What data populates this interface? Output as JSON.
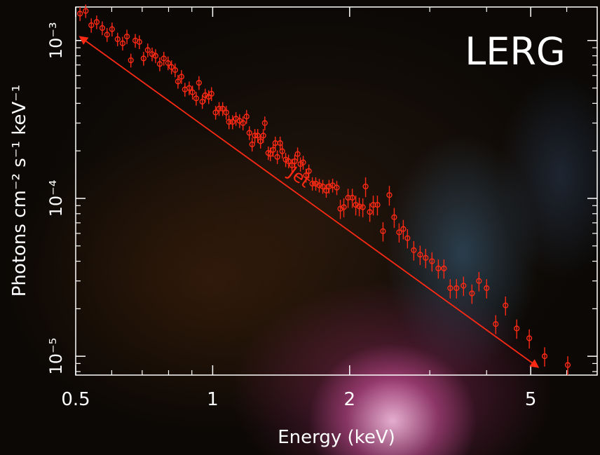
{
  "chart_data": {
    "type": "scatter",
    "x_label": "Energy  (keV)",
    "y_label": "Photons cm⁻² s⁻¹ keV⁻¹",
    "xscale": "log",
    "yscale": "log",
    "xlim": [
      0.5,
      7
    ],
    "ylim": [
      7.6e-06,
      0.00163
    ],
    "xticks": [
      0.5,
      1,
      2,
      5
    ],
    "xticks_minor": [
      0.6,
      0.7,
      0.8,
      0.9,
      3,
      4,
      6
    ],
    "yticks": [
      {
        "value": 1e-05,
        "label": "10⁻⁵"
      },
      {
        "value": 0.0001,
        "label": "10⁻⁴"
      },
      {
        "value": 0.001,
        "label": "10⁻³"
      }
    ],
    "yticks_minor": [
      8e-06,
      9e-06,
      2e-05,
      3e-05,
      4e-05,
      5e-05,
      6e-05,
      7e-05,
      8e-05,
      9e-05,
      0.0002,
      0.0003,
      0.0004,
      0.0005,
      0.0006,
      0.0007,
      0.0008,
      0.0009
    ],
    "axis_color": "#ffffff",
    "series": [
      {
        "color": "#ff2a14",
        "x": [
          0.511,
          0.526,
          0.541,
          0.556,
          0.572,
          0.586,
          0.601,
          0.618,
          0.634,
          0.648,
          0.661,
          0.676,
          0.69,
          0.705,
          0.72,
          0.736,
          0.749,
          0.765,
          0.781,
          0.798,
          0.812,
          0.827,
          0.839,
          0.854,
          0.869,
          0.888,
          0.903,
          0.92,
          0.933,
          0.949,
          0.963,
          0.98,
          0.994,
          1.015,
          1.033,
          1.052,
          1.071,
          1.086,
          1.106,
          1.125,
          1.146,
          1.166,
          1.187,
          1.204,
          1.221,
          1.238,
          1.256,
          1.274,
          1.292,
          1.302,
          1.325,
          1.339,
          1.358,
          1.373,
          1.387,
          1.407,
          1.422,
          1.447,
          1.468,
          1.494,
          1.515,
          1.537,
          1.559,
          1.581,
          1.604,
          1.627,
          1.656,
          1.685,
          1.715,
          1.746,
          1.777,
          1.802,
          1.835,
          1.874,
          1.908,
          1.942,
          1.984,
          2.027,
          2.063,
          2.1,
          2.138,
          2.168,
          2.215,
          2.254,
          2.302,
          2.368,
          2.445,
          2.506,
          2.569,
          2.624,
          2.68,
          2.767,
          2.857,
          2.939,
          3.034,
          3.133,
          3.223,
          3.327,
          3.435,
          3.559,
          3.714,
          3.848,
          4.0,
          4.189,
          4.402,
          4.658,
          4.964,
          5.365,
          6.031
        ],
        "values": [
          0.00148,
          0.00154,
          0.00125,
          0.00131,
          0.0012,
          0.00109,
          0.00118,
          0.00102,
          0.00096,
          0.00106,
          0.00075,
          0.001,
          0.00098,
          0.00077,
          0.00087,
          0.00082,
          0.0008,
          0.00071,
          0.00077,
          0.00072,
          0.00068,
          0.00065,
          0.00055,
          0.00059,
          0.00049,
          0.0005,
          0.00047,
          0.00043,
          0.00054,
          0.00041,
          0.00045,
          0.00044,
          0.00046,
          0.00035,
          0.00037,
          0.00037,
          0.00035,
          0.000305,
          0.000305,
          0.00032,
          0.00031,
          0.0003,
          0.00033,
          0.00026,
          0.00022,
          0.00025,
          0.00025,
          0.00023,
          0.00025,
          0.0003,
          0.000194,
          0.000191,
          0.000203,
          0.000224,
          0.000183,
          0.000224,
          0.000199,
          0.000176,
          0.000172,
          0.000162,
          0.000172,
          0.000191,
          0.000165,
          0.000169,
          0.00014,
          0.000149,
          0.000124,
          0.000124,
          0.000121,
          0.000119,
          0.000112,
          0.000119,
          0.000121,
          0.000117,
          8.6e-05,
          8.8e-05,
          0.000101,
          0.000101,
          9.1e-05,
          8.9e-05,
          8.8e-05,
          0.000119,
          8.2e-05,
          9.1e-05,
          9.1e-05,
          6.2e-05,
          0.000105,
          7.6e-05,
          6.1e-05,
          6.4e-05,
          5.6e-05,
          4.7e-05,
          4.4e-05,
          4.2e-05,
          4e-05,
          3.6e-05,
          3.6e-05,
          2.7e-05,
          2.7e-05,
          2.8e-05,
          2.5e-05,
          3e-05,
          2.7e-05,
          1.6e-05,
          2.1e-05,
          1.5e-05,
          1.3e-05,
          1e-05,
          8.8e-06
        ],
        "yerr": [
          0.00015,
          0.00015,
          0.00013,
          0.00013,
          0.00012,
          0.00011,
          0.00012,
          0.0001,
          9.6e-05,
          0.00011,
          7.5e-05,
          0.0001,
          9.8e-05,
          7.7e-05,
          8.7e-05,
          8.2e-05,
          8e-05,
          7.1e-05,
          7.7e-05,
          7.2e-05,
          6.8e-05,
          6.5e-05,
          5.5e-05,
          5.9e-05,
          4.9e-05,
          5e-05,
          4.7e-05,
          4.3e-05,
          5.4e-05,
          4.1e-05,
          4.5e-05,
          4.4e-05,
          4.6e-05,
          3.5e-05,
          3.7e-05,
          3.7e-05,
          3.5e-05,
          3.1e-05,
          3.1e-05,
          3.2e-05,
          3.1e-05,
          3e-05,
          3.3e-05,
          2.6e-05,
          2.2e-05,
          2.5e-05,
          2.5e-05,
          2.3e-05,
          2.5e-05,
          3e-05,
          1.9e-05,
          1.9e-05,
          2e-05,
          2.2e-05,
          1.8e-05,
          2.2e-05,
          2e-05,
          1.8e-05,
          1.7e-05,
          1.6e-05,
          1.7e-05,
          1.9e-05,
          1.7e-05,
          1.7e-05,
          1.4e-05,
          1.5e-05,
          1.2e-05,
          1.2e-05,
          1.2e-05,
          1.2e-05,
          1.1e-05,
          1.2e-05,
          1.2e-05,
          1.2e-05,
          1.2e-05,
          1.2e-05,
          1.4e-05,
          1.4e-05,
          1.3e-05,
          1.2e-05,
          1.2e-05,
          1.7e-05,
          1.1e-05,
          1.3e-05,
          1.3e-05,
          8.7e-06,
          1.5e-05,
          1.1e-05,
          8.5e-06,
          9e-06,
          7.8e-06,
          6.6e-06,
          6.2e-06,
          5.9e-06,
          5.6e-06,
          5e-06,
          5e-06,
          3.8e-06,
          3.8e-06,
          3.9e-06,
          3.5e-06,
          4.2e-06,
          3.8e-06,
          2.2e-06,
          2.9e-06,
          2.1e-06,
          1.8e-06,
          1.4e-06,
          1.2e-06
        ]
      }
    ],
    "annotations": [
      {
        "text": "LERG",
        "color": "#ffffff"
      },
      {
        "text": "Jet",
        "color": "#ff2a14",
        "x": [
          0.51,
          5.2
        ],
        "y": [
          0.00106,
          8.5e-06
        ]
      }
    ]
  }
}
